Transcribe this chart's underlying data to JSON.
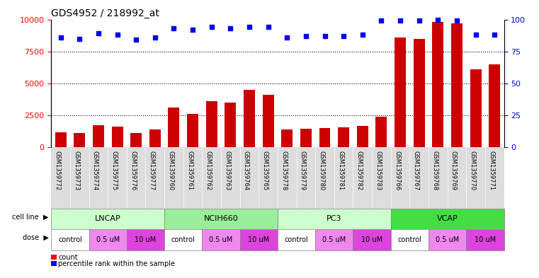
{
  "title": "GDS4952 / 218992_at",
  "samples": [
    "GSM1359772",
    "GSM1359773",
    "GSM1359774",
    "GSM1359775",
    "GSM1359776",
    "GSM1359777",
    "GSM1359760",
    "GSM1359761",
    "GSM1359762",
    "GSM1359763",
    "GSM1359764",
    "GSM1359765",
    "GSM1359778",
    "GSM1359779",
    "GSM1359780",
    "GSM1359781",
    "GSM1359782",
    "GSM1359783",
    "GSM1359766",
    "GSM1359767",
    "GSM1359768",
    "GSM1359769",
    "GSM1359770",
    "GSM1359771"
  ],
  "counts": [
    1200,
    1150,
    1750,
    1600,
    1100,
    1400,
    3100,
    2600,
    3600,
    3500,
    4500,
    4100,
    1400,
    1450,
    1500,
    1550,
    1650,
    2400,
    8600,
    8500,
    9800,
    9700,
    6100,
    6500
  ],
  "percentile_ranks": [
    86,
    85,
    89,
    88,
    84,
    86,
    93,
    92,
    94,
    93,
    94,
    94,
    86,
    87,
    87,
    87,
    88,
    99,
    99,
    99,
    100,
    99,
    88,
    88
  ],
  "cell_lines": [
    {
      "name": "LNCAP",
      "start": 0,
      "end": 6,
      "color": "#ccffcc"
    },
    {
      "name": "NCIH660",
      "start": 6,
      "end": 12,
      "color": "#99ee99"
    },
    {
      "name": "PC3",
      "start": 12,
      "end": 18,
      "color": "#ccffcc"
    },
    {
      "name": "VCAP",
      "start": 18,
      "end": 24,
      "color": "#44dd44"
    }
  ],
  "doses": [
    {
      "label": "control",
      "start": 0,
      "end": 2,
      "bg": "#ffffff"
    },
    {
      "label": "0.5 uM",
      "start": 2,
      "end": 4,
      "bg": "#ee88ee"
    },
    {
      "label": "10 uM",
      "start": 4,
      "end": 6,
      "bg": "#dd44dd"
    },
    {
      "label": "control",
      "start": 6,
      "end": 8,
      "bg": "#ffffff"
    },
    {
      "label": "0.5 uM",
      "start": 8,
      "end": 10,
      "bg": "#ee88ee"
    },
    {
      "label": "10 uM",
      "start": 10,
      "end": 12,
      "bg": "#dd44dd"
    },
    {
      "label": "control",
      "start": 12,
      "end": 14,
      "bg": "#ffffff"
    },
    {
      "label": "0.5 uM",
      "start": 14,
      "end": 16,
      "bg": "#ee88ee"
    },
    {
      "label": "10 uM",
      "start": 16,
      "end": 18,
      "bg": "#dd44dd"
    },
    {
      "label": "control",
      "start": 18,
      "end": 20,
      "bg": "#ffffff"
    },
    {
      "label": "0.5 uM",
      "start": 20,
      "end": 22,
      "bg": "#ee88ee"
    },
    {
      "label": "10 uM",
      "start": 22,
      "end": 24,
      "bg": "#dd44dd"
    }
  ],
  "bar_color": "#cc0000",
  "dot_color": "#0000ee",
  "ylim_left": [
    0,
    10000
  ],
  "ylim_right": [
    0,
    100
  ],
  "yticks_left": [
    0,
    2500,
    5000,
    7500,
    10000
  ],
  "yticks_right": [
    0,
    25,
    50,
    75,
    100
  ],
  "grid_lines": [
    2500,
    5000,
    7500
  ],
  "xticklabel_bg": "#dddddd"
}
